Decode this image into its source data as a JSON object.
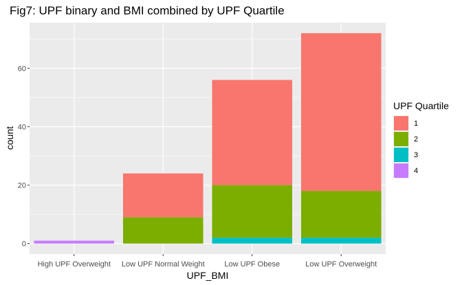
{
  "chart_data": {
    "type": "bar",
    "stacked": true,
    "title": "Fig7: UPF binary and BMI combined by UPF Quartile",
    "xlabel": "UPF_BMI",
    "ylabel": "count",
    "categories": [
      "High UPF Overweight",
      "Low UPF Normal Weight",
      "Low UPF Obese",
      "Low UPF Overweight"
    ],
    "series": [
      {
        "name": "1",
        "color": "#F8766D",
        "values": [
          0,
          15,
          36,
          54
        ]
      },
      {
        "name": "2",
        "color": "#7CAE00",
        "values": [
          0,
          9,
          18,
          16
        ]
      },
      {
        "name": "3",
        "color": "#00BFC4",
        "values": [
          0,
          0,
          2,
          2
        ]
      },
      {
        "name": "4",
        "color": "#C77CFF",
        "values": [
          1,
          0,
          0,
          0
        ]
      }
    ],
    "stack_order_bottom_to_top": [
      "4",
      "3",
      "2",
      "1"
    ],
    "ylim": [
      -3.6,
      75.6
    ],
    "yticks": [
      0,
      20,
      40,
      60
    ],
    "grid": true,
    "panel_background": "#EBEBEB",
    "legend": {
      "title": "UPF Quartile",
      "position": "right"
    }
  }
}
